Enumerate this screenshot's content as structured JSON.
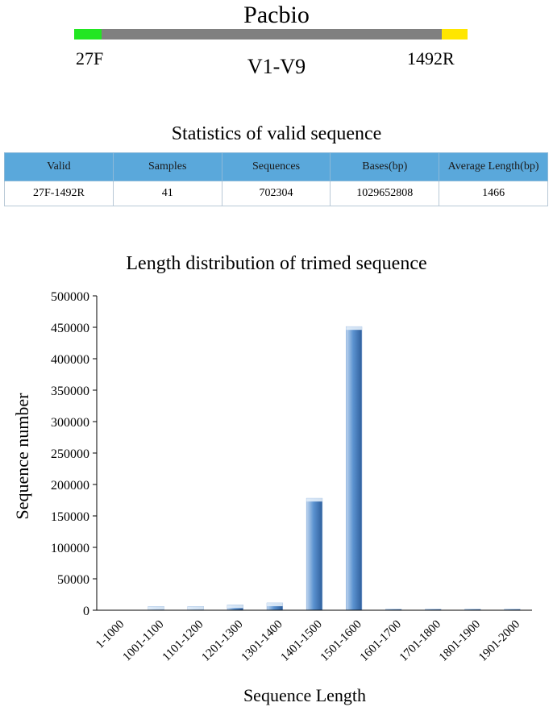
{
  "diagram": {
    "title": "Pacbio",
    "forward_primer": "27F",
    "reverse_primer": "1492R",
    "region": "V1-V9",
    "colors": {
      "forward": "#22e622",
      "middle": "#808080",
      "reverse": "#ffe600"
    }
  },
  "stats_table": {
    "title": "Statistics of valid sequence",
    "headers": [
      "Valid",
      "Samples",
      "Sequences",
      "Bases(bp)",
      "Average Length(bp)"
    ],
    "rows": [
      [
        "27F-1492R",
        "41",
        "702304",
        "1029652808",
        "1466"
      ]
    ]
  },
  "chart_data": {
    "type": "bar",
    "title": "Length distribution of trimed sequence",
    "xlabel": "Sequence Length",
    "ylabel": "Sequence number",
    "categories": [
      "1-1000",
      "1001-1100",
      "1101-1200",
      "1201-1300",
      "1301-1400",
      "1401-1500",
      "1501-1600",
      "1601-1700",
      "1701-1800",
      "1801-1900",
      "1901-2000"
    ],
    "values": [
      0,
      6000,
      6000,
      8500,
      11500,
      178000,
      451000,
      500,
      500,
      500,
      500
    ],
    "ylim": [
      0,
      500000
    ],
    "yticks": [
      "0",
      "50000",
      "100000",
      "150000",
      "200000",
      "250000",
      "300000",
      "350000",
      "400000",
      "450000",
      "500000"
    ],
    "grid": false,
    "bar_color": "#4f86c6"
  }
}
